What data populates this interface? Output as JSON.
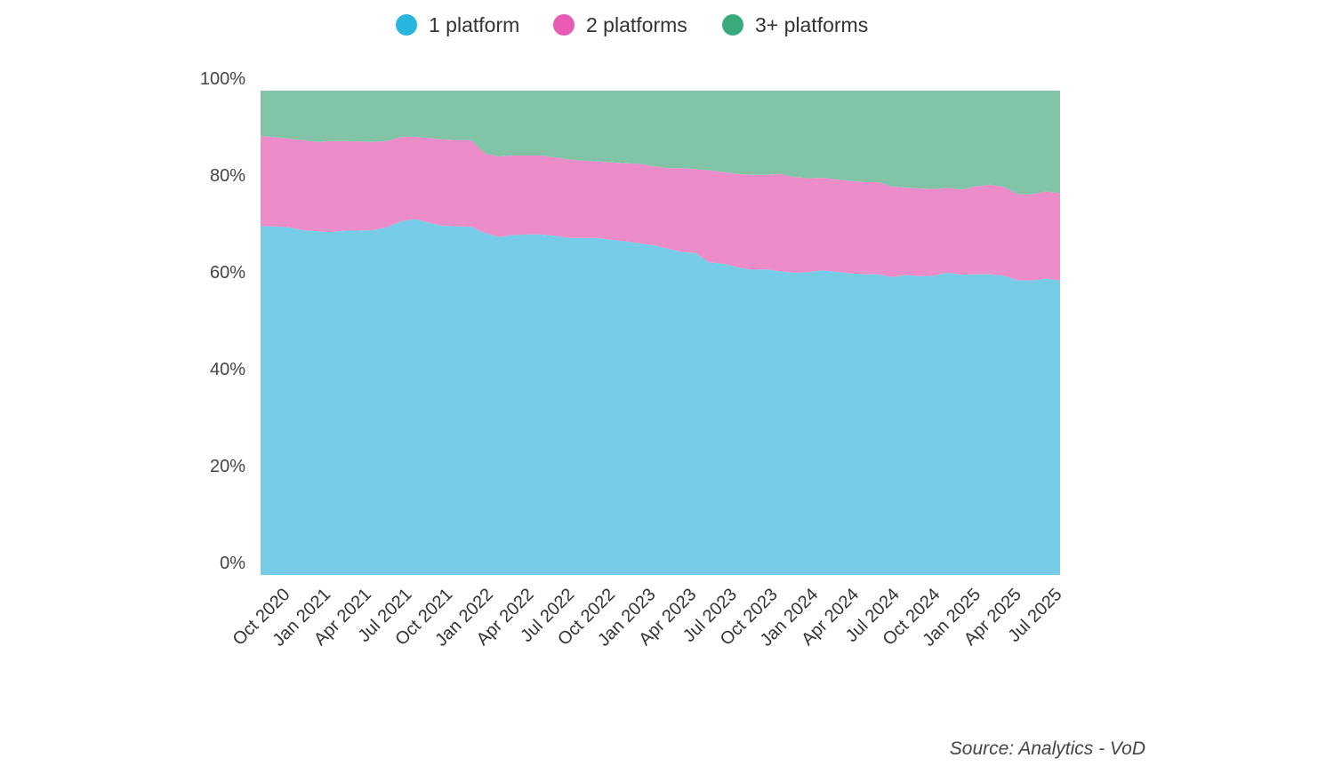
{
  "chart_data": {
    "type": "area",
    "stacked": true,
    "normalized": true,
    "title": "",
    "xlabel": "",
    "ylabel": "",
    "ylim": [
      0,
      100
    ],
    "y_ticks": [
      "0%",
      "20%",
      "40%",
      "60%",
      "80%",
      "100%"
    ],
    "x_start": "Oct 2020",
    "x_tick_labels": [
      "Oct 2020",
      "Jan 2021",
      "Apr 2021",
      "Jul 2021",
      "Oct 2021",
      "Jan 2022",
      "Apr 2022",
      "Jul 2022",
      "Oct 2022",
      "Jan 2023",
      "Apr 2023",
      "Jul 2023",
      "Oct 2023",
      "Jan 2024",
      "Apr 2024",
      "Jul 2024",
      "Oct 2024",
      "Jan 2025",
      "Apr 2025",
      "Jul 2025"
    ],
    "legend_position": "top-center",
    "grid": false,
    "series": [
      {
        "name": "1 platform",
        "color": "#76CBE6",
        "legend_color": "#29B6DE",
        "values": [
          72.0,
          72.0,
          71.8,
          71.2,
          71.0,
          70.8,
          71.1,
          71.1,
          71.2,
          71.8,
          73.0,
          73.5,
          72.7,
          72.1,
          72.0,
          71.9,
          70.6,
          69.8,
          70.2,
          70.3,
          70.3,
          70.0,
          69.6,
          69.6,
          69.6,
          69.2,
          68.9,
          68.5,
          68.1,
          67.4,
          66.7,
          66.5,
          64.5,
          64.3,
          63.5,
          63.0,
          63.1,
          62.7,
          62.4,
          62.5,
          62.9,
          62.6,
          62.3,
          62.1,
          62.1,
          61.5,
          61.9,
          61.7,
          61.8,
          62.4,
          62.0,
          62.1,
          62.1,
          61.8,
          60.8,
          60.8,
          61.2,
          60.8
        ]
      },
      {
        "name": "2 platforms",
        "color": "#EC8CC8",
        "legend_color": "#E85BB5",
        "values": [
          18.6,
          18.4,
          18.3,
          18.6,
          18.4,
          18.8,
          18.5,
          18.4,
          18.2,
          17.8,
          17.4,
          17.0,
          17.5,
          17.8,
          17.8,
          17.9,
          16.4,
          16.6,
          16.4,
          16.3,
          16.3,
          16.2,
          16.2,
          15.9,
          15.8,
          16.0,
          16.1,
          16.4,
          16.3,
          16.6,
          17.3,
          17.3,
          19.0,
          18.9,
          19.3,
          19.6,
          19.5,
          20.1,
          19.8,
          19.4,
          19.1,
          19.1,
          19.1,
          19.0,
          19.0,
          18.7,
          18.1,
          18.1,
          17.9,
          17.5,
          17.6,
          18.1,
          18.5,
          18.3,
          17.8,
          17.8,
          18.0,
          18.0
        ]
      },
      {
        "name": "3+ platforms",
        "color": "#82C4A8",
        "legend_color": "#3DAA7E",
        "values": [
          9.4,
          9.6,
          9.9,
          10.2,
          10.6,
          10.4,
          10.4,
          10.5,
          10.6,
          10.4,
          9.6,
          9.5,
          9.8,
          10.1,
          10.2,
          10.2,
          13.0,
          13.6,
          13.4,
          13.4,
          13.4,
          13.8,
          14.2,
          14.5,
          14.6,
          14.8,
          15.0,
          15.1,
          15.6,
          16.0,
          16.0,
          16.2,
          16.5,
          16.8,
          17.2,
          17.4,
          17.4,
          17.2,
          17.8,
          18.1,
          18.0,
          18.3,
          18.6,
          18.9,
          18.9,
          19.8,
          20.0,
          20.2,
          20.3,
          20.1,
          20.4,
          19.8,
          19.4,
          19.9,
          21.4,
          21.4,
          20.8,
          21.2
        ]
      }
    ],
    "source": "Source: Analytics - VoD"
  }
}
